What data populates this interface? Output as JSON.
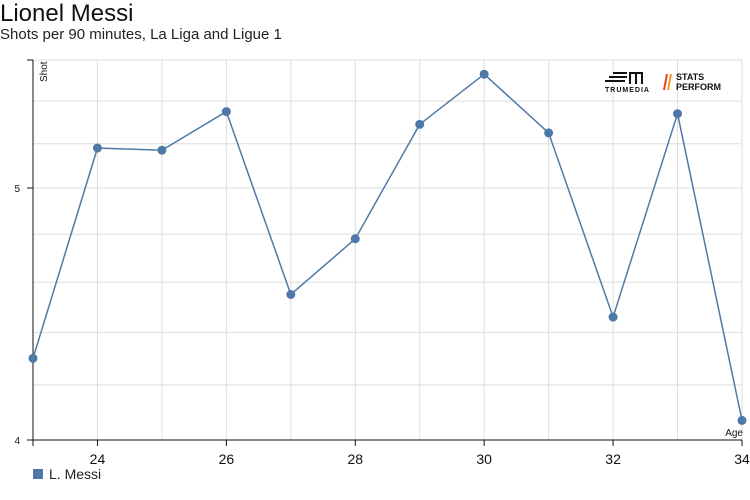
{
  "header": {
    "title": "Lionel Messi",
    "subtitle": "Shots per 90 minutes, La Liga and Ligue 1"
  },
  "logos": {
    "trumedia": "TRUMEDIA",
    "stats_perform": "STATS PERFORM"
  },
  "legend": {
    "label": "L. Messi"
  },
  "colors": {
    "series": "#4e79a7",
    "grid": "#dddddd",
    "axis": "#111111"
  },
  "chart_data": {
    "type": "line",
    "xlabel": "Age",
    "ylabel": "Shot",
    "xlim": [
      23,
      34
    ],
    "ylim": [
      4,
      5.6
    ],
    "scale_y": "log",
    "grid": true,
    "legend_position": "bottom-left",
    "x_ticks": [
      "24",
      "26",
      "28",
      "30",
      "32",
      "34"
    ],
    "y_ticks": [
      "4",
      "5"
    ],
    "series": [
      {
        "name": "L. Messi",
        "x": [
          23,
          24,
          25,
          26,
          27,
          28,
          29,
          30,
          31,
          32,
          33,
          34
        ],
        "values": [
          4.3,
          5.18,
          5.17,
          5.35,
          4.55,
          4.78,
          5.29,
          5.53,
          5.25,
          4.46,
          5.34,
          4.07
        ]
      }
    ]
  }
}
